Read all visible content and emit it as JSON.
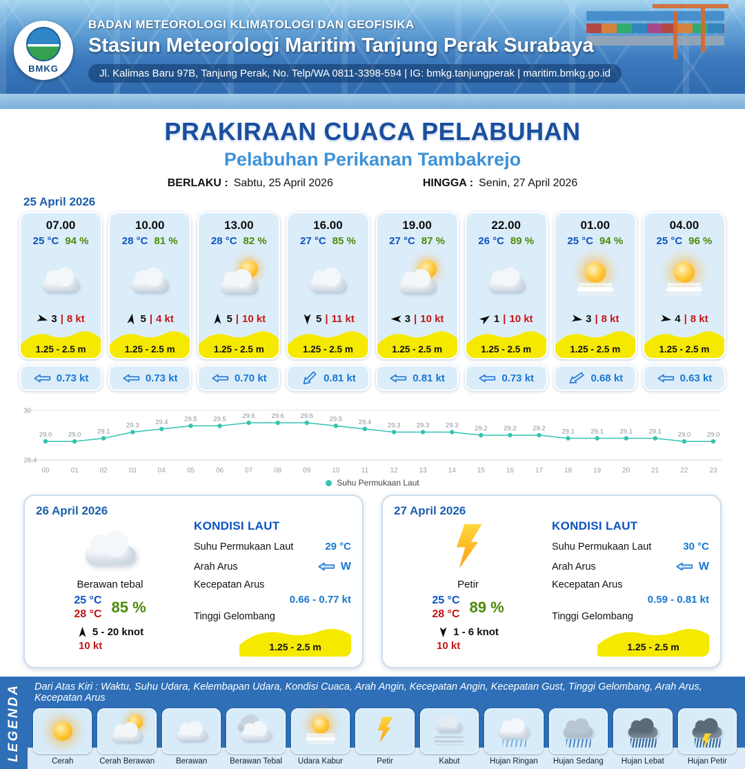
{
  "header": {
    "agency": "BADAN METEOROLOGI KLIMATOLOGI DAN GEOFISIKA",
    "station": "Stasiun Meteorologi Maritim Tanjung Perak Surabaya",
    "contact": "Jl. Kalimas Baru 97B, Tanjung Perak, No. Telp/WA 0811-3398-594 | IG: bmkg.tanjungperak | maritim.bmkg.go.id",
    "logo_text": "BMKG"
  },
  "title": {
    "main": "PRAKIRAAN CUACA PELABUHAN",
    "sub": "Pelabuhan Perikanan Tambakrejo",
    "valid_from_label": "BERLAKU :",
    "valid_from": "Sabtu, 25 April 2026",
    "valid_to_label": "HINGGA :",
    "valid_to": "Senin, 27 April 2026"
  },
  "forecast_date": "25 April 2026",
  "ui": {
    "divider": "|"
  },
  "cards": [
    {
      "time": "07.00",
      "temp": "25 °C",
      "rh": "94 %",
      "icon": "cloud",
      "wind_deg": 105,
      "wind": "3",
      "gust": "8 kt",
      "wave": "1.25 - 2.5 m",
      "current_deg": 270,
      "current": "0.73 kt"
    },
    {
      "time": "10.00",
      "temp": "28 °C",
      "rh": "81 %",
      "icon": "cloud",
      "wind_deg": 10,
      "wind": "5",
      "gust": "4 kt",
      "wave": "1.25 - 2.5 m",
      "current_deg": 270,
      "current": "0.73 kt"
    },
    {
      "time": "13.00",
      "temp": "28 °C",
      "rh": "82 %",
      "icon": "sun-cloud",
      "wind_deg": 0,
      "wind": "5",
      "gust": "10 kt",
      "wave": "1.25 - 2.5 m",
      "current_deg": 270,
      "current": "0.70 kt"
    },
    {
      "time": "16.00",
      "temp": "27 °C",
      "rh": "85 %",
      "icon": "cloud",
      "wind_deg": 180,
      "wind": "5",
      "gust": "11 kt",
      "wave": "1.25 - 2.5 m",
      "current_deg": 225,
      "current": "0.81 kt"
    },
    {
      "time": "19.00",
      "temp": "27 °C",
      "rh": "87 %",
      "icon": "sun-cloud",
      "wind_deg": 270,
      "wind": "3",
      "gust": "10 kt",
      "wave": "1.25 - 2.5 m",
      "current_deg": 270,
      "current": "0.81 kt"
    },
    {
      "time": "22.00",
      "temp": "26 °C",
      "rh": "89 %",
      "icon": "cloud",
      "wind_deg": 55,
      "wind": "1",
      "gust": "10 kt",
      "wave": "1.25 - 2.5 m",
      "current_deg": 270,
      "current": "0.73 kt"
    },
    {
      "time": "01.00",
      "temp": "25 °C",
      "rh": "94 %",
      "icon": "haze",
      "wind_deg": 100,
      "wind": "3",
      "gust": "8 kt",
      "wave": "1.25 - 2.5 m",
      "current_deg": 235,
      "current": "0.68 kt"
    },
    {
      "time": "04.00",
      "temp": "25 °C",
      "rh": "96 %",
      "icon": "haze",
      "wind_deg": 100,
      "wind": "4",
      "gust": "8 kt",
      "wave": "1.25 - 2.5 m",
      "current_deg": 270,
      "current": "0.63 kt"
    }
  ],
  "chart_data": {
    "type": "line",
    "x": [
      "00",
      "01",
      "02",
      "03",
      "04",
      "05",
      "06",
      "07",
      "08",
      "09",
      "10",
      "11",
      "12",
      "13",
      "14",
      "15",
      "16",
      "17",
      "18",
      "19",
      "20",
      "21",
      "22",
      "23"
    ],
    "series": [
      {
        "name": "Suhu Permukaan Laut",
        "values": [
          29.0,
          29.0,
          29.1,
          29.3,
          29.4,
          29.5,
          29.5,
          29.6,
          29.6,
          29.6,
          29.5,
          29.4,
          29.3,
          29.3,
          29.3,
          29.2,
          29.2,
          29.2,
          29.1,
          29.1,
          29.1,
          29.1,
          29.0,
          29.0
        ]
      }
    ],
    "ylim": [
      28.4,
      30
    ],
    "line_color": "#35c2b1",
    "legend_position": "bottom",
    "grid": true
  },
  "days": [
    {
      "date": "26 April 2026",
      "icon": "cloud",
      "condition": "Berawan tebal",
      "temp_min": "25 °C",
      "temp_max": "28 °C",
      "rh": "85 %",
      "wind_deg": 0,
      "wind_range": "5  - 20 knot",
      "gust": "10 kt",
      "sea": {
        "heading": "KONDISI LAUT",
        "sst_label": "Suhu Permukaan Laut",
        "sst": "29 °C",
        "dir_label": "Arah Arus",
        "dir": "W",
        "dir_deg": 270,
        "speed_label": "Kecepatan Arus",
        "speed": "0.66  - 0.77 kt",
        "wave_label": "Tinggi Gelombang",
        "wave": "1.25 - 2.5 m"
      }
    },
    {
      "date": "27 April 2026",
      "icon": "lightning",
      "condition": "Petir",
      "temp_min": "25 °C",
      "temp_max": "28 °C",
      "rh": "89 %",
      "wind_deg": 180,
      "wind_range": "1  - 6 knot",
      "gust": "10 kt",
      "sea": {
        "heading": "KONDISI LAUT",
        "sst_label": "Suhu Permukaan Laut",
        "sst": "30 °C",
        "dir_label": "Arah Arus",
        "dir": "W",
        "dir_deg": 270,
        "speed_label": "Kecepatan Arus",
        "speed": "0.59  - 0.81 kt",
        "wave_label": "Tinggi Gelombang",
        "wave": "1.25 - 2.5 m"
      }
    }
  ],
  "legend": {
    "title": "LEGENDA",
    "description": "Dari Atas Kiri : Waktu, Suhu Udara, Kelembapan Udara, Kondisi Cuaca, Arah Angin, Kecepatan Angin, Kecepatan Gust, Tinggi Gelombang, Arah Arus, Kecepatan Arus",
    "items": [
      {
        "label": "Cerah",
        "icon": "sun"
      },
      {
        "label": "Cerah Berawan",
        "icon": "sun-cloud"
      },
      {
        "label": "Berawan",
        "icon": "cloud"
      },
      {
        "label": "Berawan Tebal",
        "icon": "cloud-thick"
      },
      {
        "label": "Udara Kabur",
        "icon": "haze"
      },
      {
        "label": "Petir",
        "icon": "lightning"
      },
      {
        "label": "Kabut",
        "icon": "fog"
      },
      {
        "label": "Hujan Ringan",
        "icon": "rain-light"
      },
      {
        "label": "Hujan Sedang",
        "icon": "rain-medium"
      },
      {
        "label": "Hujan Lebat",
        "icon": "rain-heavy"
      },
      {
        "label": "Hujan Petir",
        "icon": "rain-thunder"
      }
    ]
  }
}
